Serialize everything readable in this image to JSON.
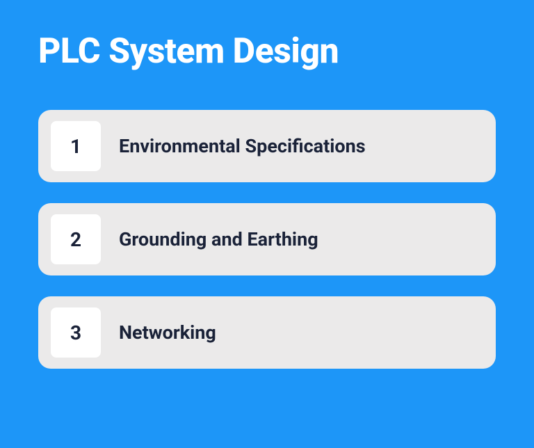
{
  "infographic": {
    "type": "infographic",
    "title": "PLC System Design",
    "background_color": "#1d96f8",
    "title_color": "#ffffff",
    "title_fontsize": 50,
    "item_background": "#ebeaea",
    "number_background": "#ffffff",
    "text_color": "#1a2238",
    "item_fontsize": 27,
    "number_fontsize": 28,
    "border_radius": 18,
    "items": [
      {
        "number": "1",
        "label": "Environmental Specifications"
      },
      {
        "number": "2",
        "label": "Grounding and Earthing"
      },
      {
        "number": "3",
        "label": "Networking"
      }
    ]
  }
}
